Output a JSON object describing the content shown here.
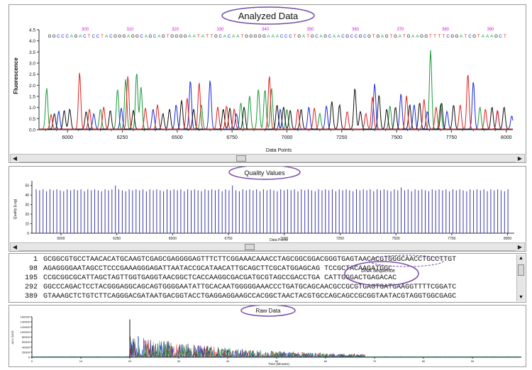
{
  "panels": {
    "analyzed": {
      "title": "Analyzed Data",
      "xlabel": "Data Points",
      "ylabel": "Fluorescence"
    },
    "quality": {
      "title": "Quality Values",
      "xlabel": "Data Points",
      "ylabel": "Quality (Log)"
    },
    "raw": {
      "title": "Raw Data",
      "xlabel": "Time (Minutes)",
      "ylabel": "AA's DATA"
    }
  },
  "sequence": {
    "callout": "DNA Sequence",
    "rows": [
      {
        "index": "1",
        "text": "GCGGCGTGCCTAACACATGCAAGTCGAGCGAGGGGAGTTTCTTCGGAAACAAACCTAGCGGCGGACGGGTGAGTAACACGTGGGCAACCTGCCTTGT"
      },
      {
        "index": "98",
        "text": "AGAGGGGAATAGCCTCCCGAAAGGGAGATTAATACCGCATAACATTGCAGCTTCGCATGGAGCAG                TCCGCTACAAGATGGC"
      },
      {
        "index": "195",
        "text": "CCGCGGCGCATTAGCTAGTTGGTGAGGTAACGGCTCACCAAGGCGACGATGCGTAGCCGACCTGA                CATTGGGACTGAGACAC"
      },
      {
        "index": "292",
        "text": "GGCCCAGACTCCTACGGGAGGCAGCAGTGGGGAATATTGCACAATGGGGGAAACCCTGATGCAGCAACGCCGCGTGAGTGATGAAGGTTTTCGGATC"
      },
      {
        "index": "389",
        "text": "GTAAAGCTCTGTCTTCAGGGACGATAATGACGGTACCTGAGGAGGAAGCCACGGCTAACTACGTGCCAGCAGCCGCGGTAATACGTAGGTGGCGAGC"
      }
    ]
  },
  "chart_data": [
    {
      "type": "line",
      "title": "Analyzed Data",
      "xlabel": "Data Points",
      "ylabel": "Fluorescence",
      "xlim": [
        5870,
        8030
      ],
      "ylim": [
        0,
        4.5
      ],
      "x_ticks": [
        "6000",
        "6250",
        "6500",
        "6750",
        "7000",
        "7250",
        "7500",
        "7750",
        "8000"
      ],
      "y_ticks": [
        "0.0",
        "0.5",
        "1.0",
        "1.5",
        "2.0",
        "2.5",
        "3.0",
        "3.5",
        "4.0",
        "4.5"
      ],
      "base_positions": [
        "300",
        "310",
        "320",
        "330",
        "340",
        "350",
        "360",
        "370",
        "380",
        "390"
      ],
      "called_bases": "GGCCCAGACTCCTACGGGAGGCAGCAGTGGGGAATATTGCACAATGGGGGAAACCCTGATGCAGCAACGCCGCGTGAGTGATGAAGGTTTTCGGATCGTAAAGCT",
      "base_colors": {
        "A": "#1a9a3a",
        "C": "#1a2bd6",
        "G": "#111111",
        "T": "#e0201c"
      },
      "series": [
        {
          "base": "A",
          "color": "#1a9a3a",
          "peaks": [
            [
              5905,
              1.85
            ],
            [
              6150,
              0.9
            ],
            [
              6228,
              1.8
            ],
            [
              6265,
              2.25
            ],
            [
              6315,
              2.55
            ],
            [
              6335,
              1.9
            ],
            [
              6610,
              1.1
            ],
            [
              6790,
              1.2
            ],
            [
              6830,
              1.5
            ],
            [
              6870,
              1.8
            ],
            [
              6900,
              1.8
            ],
            [
              6930,
              1.85
            ],
            [
              7000,
              0.9
            ],
            [
              7150,
              0.7
            ],
            [
              7470,
              1.05
            ],
            [
              7655,
              3.55
            ],
            [
              7700,
              1.1
            ],
            [
              7880,
              1.0
            ]
          ]
        },
        {
          "base": "C",
          "color": "#1a2bd6",
          "peaks": [
            [
              5960,
              0.8
            ],
            [
              6120,
              0.7
            ],
            [
              6245,
              0.95
            ],
            [
              6390,
              0.9
            ],
            [
              6495,
              1.1
            ],
            [
              6560,
              2.2
            ],
            [
              6650,
              2.2
            ],
            [
              6770,
              0.7
            ],
            [
              6970,
              0.9
            ],
            [
              7100,
              1.0
            ],
            [
              7180,
              1.05
            ],
            [
              7400,
              2.05
            ],
            [
              7520,
              1.6
            ],
            [
              7580,
              1.1
            ],
            [
              7640,
              0.8
            ],
            [
              7730,
              0.8
            ],
            [
              7850,
              2.15
            ],
            [
              7960,
              0.8
            ],
            [
              8025,
              0.6
            ]
          ]
        },
        {
          "base": "G",
          "color": "#111111",
          "peaks": [
            [
              5940,
              0.7
            ],
            [
              5985,
              0.85
            ],
            [
              6010,
              0.9
            ],
            [
              6085,
              0.8
            ],
            [
              6195,
              0.85
            ],
            [
              6300,
              0.85
            ],
            [
              6435,
              0.7
            ],
            [
              6465,
              0.9
            ],
            [
              6520,
              1.3
            ],
            [
              6575,
              0.9
            ],
            [
              6710,
              0.9
            ],
            [
              6740,
              0.95
            ],
            [
              6805,
              1.0
            ],
            [
              6955,
              1.1
            ],
            [
              6985,
              1.0
            ],
            [
              7015,
              0.85
            ],
            [
              7065,
              0.9
            ],
            [
              7205,
              1.25
            ],
            [
              7240,
              1.1
            ],
            [
              7310,
              1.85
            ],
            [
              7335,
              0.8
            ],
            [
              7420,
              1.55
            ],
            [
              7455,
              0.9
            ],
            [
              7495,
              1.0
            ],
            [
              7560,
              1.1
            ],
            [
              7605,
              1.2
            ],
            [
              7705,
              1.2
            ],
            [
              7760,
              1.1
            ],
            [
              7935,
              1.0
            ],
            [
              7990,
              1.0
            ]
          ]
        },
        {
          "base": "T",
          "color": "#e0201c",
          "peaks": [
            [
              5925,
              0.65
            ],
            [
              6055,
              2.55
            ],
            [
              6100,
              0.9
            ],
            [
              6165,
              1.0
            ],
            [
              6275,
              2.4
            ],
            [
              6355,
              0.95
            ],
            [
              6410,
              1.1
            ],
            [
              6545,
              1.4
            ],
            [
              6600,
              2.1
            ],
            [
              6685,
              1.0
            ],
            [
              6725,
              1.05
            ],
            [
              6760,
              0.9
            ],
            [
              6920,
              2.4
            ],
            [
              7050,
              0.9
            ],
            [
              7125,
              0.95
            ],
            [
              7275,
              0.8
            ],
            [
              7360,
              0.7
            ],
            [
              7390,
              1.45
            ],
            [
              7545,
              1.5
            ],
            [
              7625,
              1.35
            ],
            [
              7680,
              1.0
            ],
            [
              7790,
              1.1
            ],
            [
              7825,
              2.5
            ],
            [
              7905,
              0.9
            ],
            [
              7960,
              0.85
            ]
          ]
        }
      ]
    },
    {
      "type": "bar",
      "title": "Quality Values",
      "xlabel": "Data Points",
      "ylabel": "Quality (Log)",
      "xlim": [
        5870,
        8030
      ],
      "ylim": [
        0,
        55
      ],
      "x_ticks": [
        "6000",
        "6250",
        "6500",
        "6750",
        "7000",
        "7250",
        "7500",
        "7750",
        "8000"
      ],
      "y_ticks": [
        "0",
        "10",
        "20",
        "30",
        "40",
        "50"
      ],
      "bar_color": "#3a3aa8",
      "values": [
        46,
        45,
        46,
        44,
        46,
        45,
        46,
        45,
        44,
        46,
        45,
        46,
        45,
        46,
        44,
        46,
        45,
        46,
        45,
        44,
        46,
        45,
        46,
        50,
        46,
        45,
        44,
        46,
        45,
        46,
        45,
        46,
        44,
        46,
        45,
        46,
        45,
        44,
        46,
        45,
        46,
        45,
        46,
        44,
        46,
        45,
        46,
        45,
        44,
        46,
        45,
        46,
        45,
        46,
        44,
        46,
        45,
        50,
        45,
        44,
        46,
        45,
        46,
        45,
        46,
        44,
        46,
        45,
        46,
        45,
        44,
        46,
        45,
        46,
        45,
        46,
        44,
        46,
        45,
        46,
        45,
        44,
        46,
        45,
        46,
        45,
        46,
        44,
        46,
        45,
        46,
        45,
        44,
        46,
        45,
        46,
        45,
        46,
        44,
        46,
        45,
        46,
        45,
        44,
        46,
        45,
        48,
        45,
        46,
        44,
        46,
        45,
        46,
        45,
        44,
        46,
        45,
        46,
        45,
        46,
        44,
        46,
        45,
        46,
        45,
        44,
        46,
        45,
        46,
        45,
        46,
        44,
        46,
        45,
        46,
        45,
        44,
        46
      ]
    },
    {
      "type": "line",
      "title": "Raw Data",
      "xlabel": "Time (Minutes)",
      "ylabel": "AA's DATA",
      "xlim": [
        0,
        100
      ],
      "ylim": [
        0,
        160000
      ],
      "x_ticks": [
        "0",
        "10",
        "20",
        "30",
        "40",
        "50",
        "60",
        "70",
        "80",
        "90"
      ],
      "y_ticks": [
        "0",
        "20000",
        "40000",
        "60000",
        "80000",
        "100000",
        "120000",
        "140000",
        "160000"
      ],
      "signal_start": 20,
      "signal_end": 68,
      "max_peak": 150000
    }
  ]
}
